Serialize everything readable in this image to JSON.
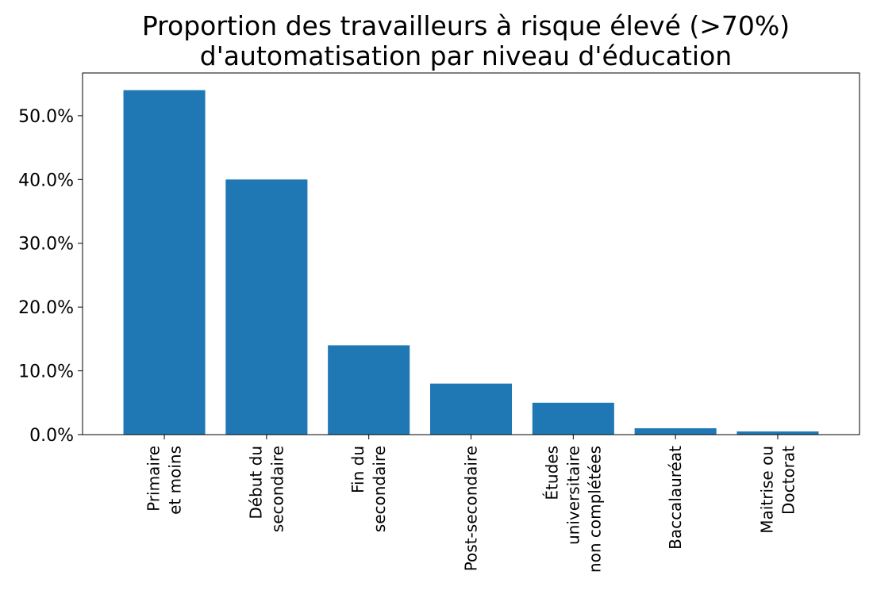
{
  "chart_data": {
    "type": "bar",
    "title_lines": [
      "Proportion des travailleurs à risque élevé (>70%)",
      "d'automatisation par niveau d'éducation"
    ],
    "xlabel": "",
    "ylabel": "",
    "categories": [
      [
        "Primaire",
        "et moins"
      ],
      [
        "Début du",
        "secondaire"
      ],
      [
        "Fin du",
        "secondaire"
      ],
      [
        "Post-secondaire"
      ],
      [
        "Études",
        "universitaire",
        "non complétées"
      ],
      [
        "Baccalauréat"
      ],
      [
        "Maitrise ou",
        "Doctorat"
      ]
    ],
    "values": [
      54,
      40,
      14,
      8,
      5,
      1,
      0.5
    ],
    "ylim": [
      0,
      56.7
    ],
    "yticks": [
      0,
      10,
      20,
      30,
      40,
      50
    ],
    "ytick_labels": [
      "0.0%",
      "10.0%",
      "20.0%",
      "30.0%",
      "40.0%",
      "50.0%"
    ],
    "grid": false,
    "legend": "none",
    "bar_color": "#1f77b4"
  }
}
